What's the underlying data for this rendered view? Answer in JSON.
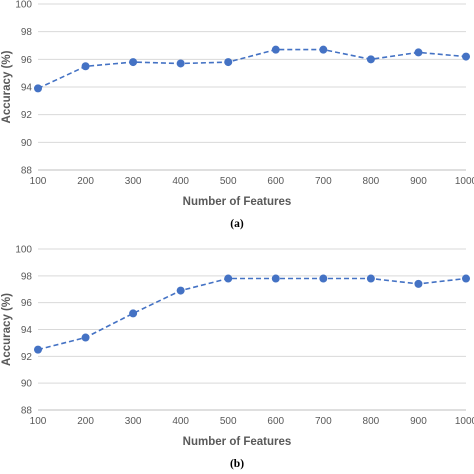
{
  "chart_data": [
    {
      "type": "line",
      "panel_label": "(a)",
      "xlabel": "Number of Features",
      "ylabel": "Accuracy (%)",
      "x": [
        100,
        200,
        300,
        400,
        500,
        600,
        700,
        800,
        900,
        1000
      ],
      "x_tick_labels": [
        "100",
        "200",
        "300",
        "400",
        "500",
        "600",
        "700",
        "800",
        "900",
        "1000"
      ],
      "y_ticks": [
        88,
        90,
        92,
        94,
        96,
        98,
        100
      ],
      "ylim": [
        88,
        100
      ],
      "grid": "horizontal",
      "line_style": "dashed",
      "color": "#4472c4",
      "series": [
        {
          "values": [
            93.9,
            95.5,
            95.8,
            95.7,
            95.8,
            96.7,
            96.7,
            96.0,
            96.5,
            96.2
          ]
        }
      ]
    },
    {
      "type": "line",
      "panel_label": "(b)",
      "xlabel": "Number of Features",
      "ylabel": "Accuracy (%)",
      "x": [
        100,
        200,
        300,
        400,
        500,
        600,
        700,
        800,
        900,
        1000
      ],
      "x_tick_labels": [
        "100",
        "200",
        "300",
        "400",
        "500",
        "600",
        "700",
        "800",
        "900",
        "1000"
      ],
      "y_ticks": [
        88,
        90,
        92,
        94,
        96,
        98,
        100
      ],
      "ylim": [
        88,
        100
      ],
      "grid": "horizontal",
      "line_style": "dashed",
      "color": "#4472c4",
      "series": [
        {
          "values": [
            92.5,
            93.4,
            95.2,
            96.9,
            97.8,
            97.8,
            97.8,
            97.8,
            97.4,
            97.8
          ]
        }
      ]
    }
  ]
}
